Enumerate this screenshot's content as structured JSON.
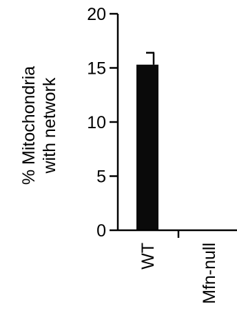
{
  "chart_data": {
    "type": "bar",
    "categories": [
      "WT",
      "Mfn-null"
    ],
    "values": [
      15.3,
      0
    ],
    "error": [
      1.1,
      0
    ],
    "title": "",
    "xlabel": "",
    "ylabel": [
      "% Mitochondria",
      "with network"
    ],
    "ylim": [
      0,
      20
    ],
    "yticks": [
      "0",
      "5",
      "10",
      "15",
      "20"
    ],
    "grid": false,
    "bar_color": "#0a0a0a"
  }
}
